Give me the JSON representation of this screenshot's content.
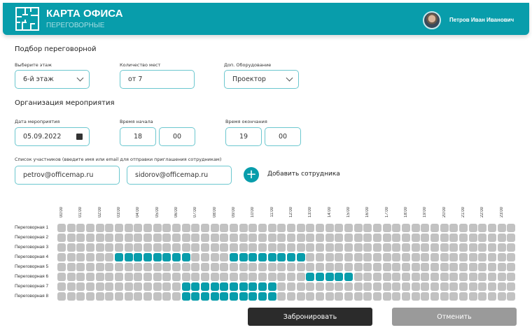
{
  "header": {
    "title": "КАРТА ОФИСА",
    "subtitle": "ПЕРЕГОВОРНЫЕ",
    "user": "Петров Иван Иванович"
  },
  "selection": {
    "heading": "Подбор переговорной",
    "floor": {
      "label": "Выберите этаж",
      "value": "6-й этаж"
    },
    "seats": {
      "label": "Количество мест",
      "value": "от 7"
    },
    "equipment": {
      "label": "Доп. Оборудование",
      "value": "Проектор"
    }
  },
  "event": {
    "heading": "Организация мероприятия",
    "date": {
      "label": "Дата мероприятия",
      "value": "05.09.2022"
    },
    "start": {
      "label": "Время начала",
      "hour": "18",
      "minute": "00"
    },
    "end": {
      "label": "Время окончания",
      "hour": "19",
      "minute": "00"
    },
    "participants": {
      "label": "Список участников (введите имя или email для отправки приглашения сотрудникам)",
      "values": [
        "petrov@officemap.ru",
        "sidorov@officemap.ru"
      ]
    },
    "add_label": "Добавить сотрудника",
    "add_icon": "plus-icon"
  },
  "schedule": {
    "hours": [
      "00:00",
      "01:00",
      "02:00",
      "03:00",
      "04:00",
      "05:00",
      "06:00",
      "07:00",
      "08:00",
      "09:00",
      "10:00",
      "11:00",
      "12:00",
      "13:00",
      "14:00",
      "15:00",
      "16:00",
      "17:00",
      "18:00",
      "19:00",
      "20:00",
      "21:00",
      "22:00",
      "23:00"
    ],
    "slots_per_hour": 2,
    "rooms": [
      {
        "name": "Переговорная 1",
        "booked": []
      },
      {
        "name": "Переговорная 2",
        "booked": []
      },
      {
        "name": "Переговорная 3",
        "booked": []
      },
      {
        "name": "Переговорная 4",
        "booked": [
          [
            "03:00",
            "06:30"
          ],
          [
            "09:00",
            "12:30"
          ]
        ]
      },
      {
        "name": "Переговорная 5",
        "booked": []
      },
      {
        "name": "Переговорная 6",
        "booked": [
          [
            "13:00",
            "15:00"
          ]
        ]
      },
      {
        "name": "Переговорная 7",
        "booked": [
          [
            "06:30",
            "11:00"
          ]
        ]
      },
      {
        "name": "Переговорная 8",
        "booked": [
          [
            "06:30",
            "11:00"
          ]
        ]
      }
    ],
    "colors": {
      "free": "#c2c2c2",
      "booked": "#089dab"
    }
  },
  "actions": {
    "book": "Забронировать",
    "cancel": "Отменить"
  }
}
